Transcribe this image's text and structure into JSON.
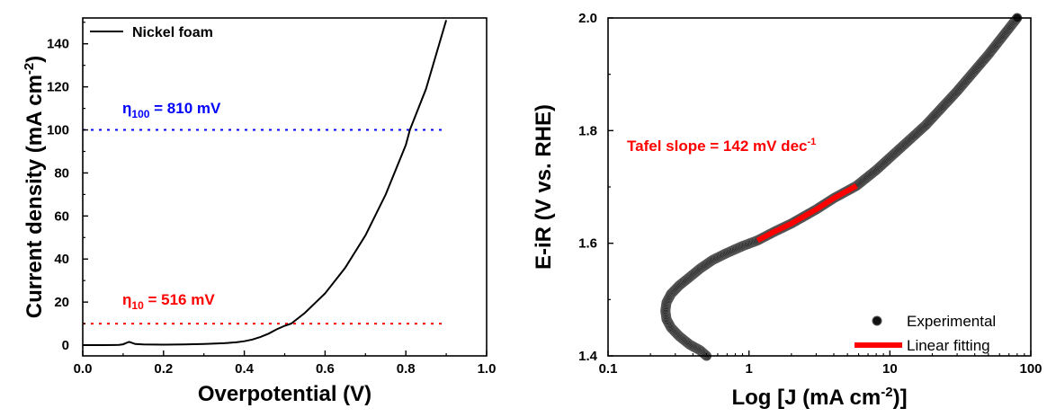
{
  "colors": {
    "axis": "#000000",
    "curve": "#000000",
    "eta10": "#ff0000",
    "eta100": "#0000ff",
    "fit": "#ff0000"
  },
  "chart_data": [
    {
      "type": "line",
      "title": "",
      "xlabel": "Overpotential (V)",
      "ylabel_main": "Current density (mA cm",
      "ylabel_sup": "-2",
      "ylabel_end": ")",
      "xlim": [
        0.0,
        1.0
      ],
      "ylim": [
        -5,
        152
      ],
      "xticks": [
        0.0,
        0.2,
        0.4,
        0.6,
        0.8,
        1.0
      ],
      "xtick_labels": [
        "0.0",
        "0.2",
        "0.4",
        "0.6",
        "0.8",
        "1.0"
      ],
      "yticks": [
        0,
        20,
        40,
        60,
        80,
        100,
        120,
        140
      ],
      "ytick_labels": [
        "0",
        "20",
        "40",
        "60",
        "80",
        "100",
        "120",
        "140"
      ],
      "legend_position": "top-left",
      "series": [
        {
          "name": "Nickel foam",
          "x": [
            0.0,
            0.05,
            0.09,
            0.1,
            0.11,
            0.115,
            0.12,
            0.13,
            0.15,
            0.2,
            0.25,
            0.3,
            0.35,
            0.38,
            0.4,
            0.42,
            0.44,
            0.46,
            0.48,
            0.5,
            0.516,
            0.55,
            0.6,
            0.65,
            0.7,
            0.75,
            0.8,
            0.81,
            0.85,
            0.9
          ],
          "y": [
            0.0,
            0.0,
            0.1,
            0.4,
            1.2,
            1.5,
            1.2,
            0.5,
            0.3,
            0.2,
            0.3,
            0.5,
            0.9,
            1.3,
            1.8,
            2.6,
            3.8,
            5.3,
            7.3,
            9.0,
            10.0,
            15.0,
            24.0,
            36.0,
            51.0,
            70.0,
            93.0,
            100.0,
            119.0,
            151.0
          ]
        }
      ],
      "reference_lines": [
        {
          "label": "η",
          "sub": "100",
          "rest": " = 810 mV",
          "y": 100,
          "color": "#0000ff"
        },
        {
          "label": "η",
          "sub": "10",
          "rest": " = 516 mV",
          "y": 10,
          "color": "#ff0000"
        }
      ]
    },
    {
      "type": "scatter",
      "title": "",
      "xlabel_main": "Log [J (mA cm",
      "xlabel_sup": "-2",
      "xlabel_end": ")]",
      "ylabel": "E-iR (V vs. RHE)",
      "xscale": "log",
      "xlim": [
        0.1,
        100
      ],
      "ylim": [
        1.4,
        2.0
      ],
      "xticks": [
        0.1,
        1,
        10,
        100
      ],
      "xtick_labels": [
        "0.1",
        "1",
        "10",
        "100"
      ],
      "yticks": [
        1.4,
        1.6,
        1.8,
        2.0
      ],
      "ytick_labels": [
        "1.4",
        "1.6",
        "1.8",
        "2.0"
      ],
      "legend_position": "bottom-right",
      "annotation_main": "Tafel slope = 142 mV dec",
      "annotation_sup": "-1",
      "series": [
        {
          "name": "Experimental",
          "x": [
            0.5,
            0.45,
            0.38,
            0.32,
            0.28,
            0.26,
            0.255,
            0.26,
            0.28,
            0.32,
            0.38,
            0.45,
            0.55,
            0.7,
            0.9,
            1.15,
            1.5,
            2.0,
            3.0,
            4.0,
            5.8,
            8.0,
            12.0,
            18.0,
            30.0,
            50.0,
            80.0
          ],
          "y": [
            1.4,
            1.41,
            1.42,
            1.435,
            1.45,
            1.465,
            1.48,
            1.495,
            1.51,
            1.525,
            1.54,
            1.555,
            1.57,
            1.583,
            1.595,
            1.605,
            1.62,
            1.635,
            1.66,
            1.68,
            1.702,
            1.73,
            1.77,
            1.81,
            1.87,
            1.935,
            2.0
          ]
        },
        {
          "name": "Linear fitting",
          "x": [
            1.15,
            1.5,
            2.0,
            3.0,
            4.0,
            5.8
          ],
          "y": [
            1.605,
            1.62,
            1.635,
            1.66,
            1.68,
            1.702
          ]
        }
      ]
    }
  ]
}
